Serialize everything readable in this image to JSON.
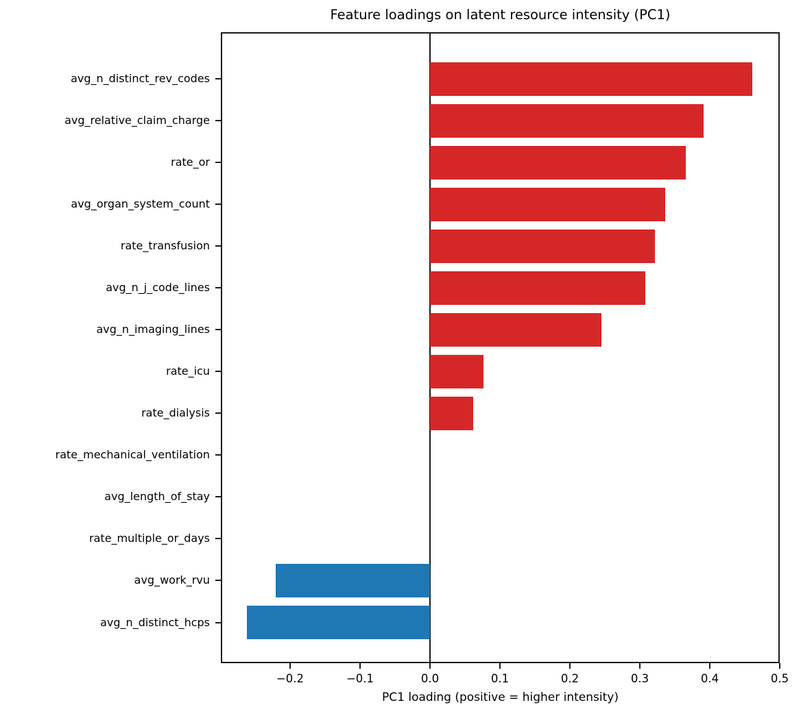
{
  "title": "Feature loadings on latent resource intensity (PC1)",
  "chart_data": {
    "type": "bar",
    "orientation": "horizontal",
    "title": "Feature loadings on latent resource intensity (PC1)",
    "xlabel": "PC1 loading (positive = higher intensity)",
    "ylabel": "",
    "categories": [
      "avg_n_distinct_rev_codes",
      "avg_relative_claim_charge",
      "rate_or",
      "avg_organ_system_count",
      "rate_transfusion",
      "avg_n_j_code_lines",
      "avg_n_imaging_lines",
      "rate_icu",
      "rate_dialysis",
      "rate_mechanical_ventilation",
      "avg_length_of_stay",
      "rate_multiple_or_days",
      "avg_work_rvu",
      "avg_n_distinct_hcps"
    ],
    "values": [
      0.461,
      0.391,
      0.366,
      0.336,
      0.322,
      0.308,
      0.245,
      0.076,
      0.062,
      0.0,
      0.0,
      0.0,
      -0.221,
      -0.262
    ],
    "xlim": [
      -0.299,
      0.5
    ],
    "xticks": [
      -0.2,
      -0.1,
      0.0,
      0.1,
      0.2,
      0.3,
      0.4,
      0.5
    ],
    "xtick_labels": [
      "−0.2",
      "−0.1",
      "0.0",
      "0.1",
      "0.2",
      "0.3",
      "0.4",
      "0.5"
    ],
    "positive_color": "#d62728",
    "negative_color": "#1f77b4",
    "zero_line": true,
    "grid": false,
    "legend": null
  }
}
